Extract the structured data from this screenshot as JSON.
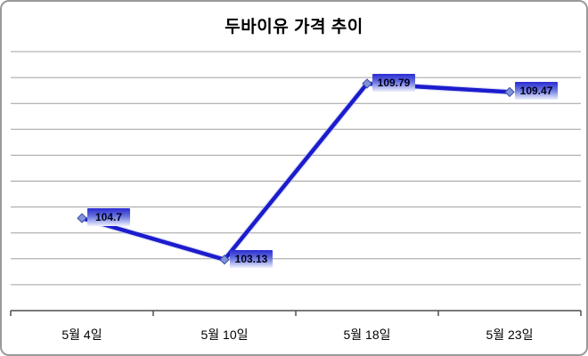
{
  "window": {
    "background": "#ffffff",
    "border_color": "#9a9a9a"
  },
  "chart_data": {
    "type": "line",
    "title": "두바이유 가격 추이",
    "categories": [
      "5월 4일",
      "5월 10일",
      "5월 18일",
      "5월 23일"
    ],
    "series": [
      {
        "name": "두바이유 가격",
        "values": [
          104.7,
          103.13,
          109.79,
          109.47
        ]
      }
    ],
    "data_labels_shown": true,
    "xlabel": "",
    "ylabel": "",
    "y_tick_labels_shown": false,
    "ylim": [
      101.2,
      111.0
    ],
    "gridline_count": 10,
    "grid": "horizontal",
    "legend": "none",
    "colors": {
      "line": "#1c1ccd",
      "line_halo": "#c3cbf0",
      "marker_fill": "#8193d6",
      "marker_border": "#3848a8",
      "label_gradient_top": "#2b2bd2",
      "label_gradient_mid": "#6672dd",
      "label_gradient_bottom": "#eef2fd",
      "label_text": "#00001e",
      "gridline": "#a0a0a0",
      "axis": "#4d4d4d",
      "title_text": "#000000"
    }
  }
}
